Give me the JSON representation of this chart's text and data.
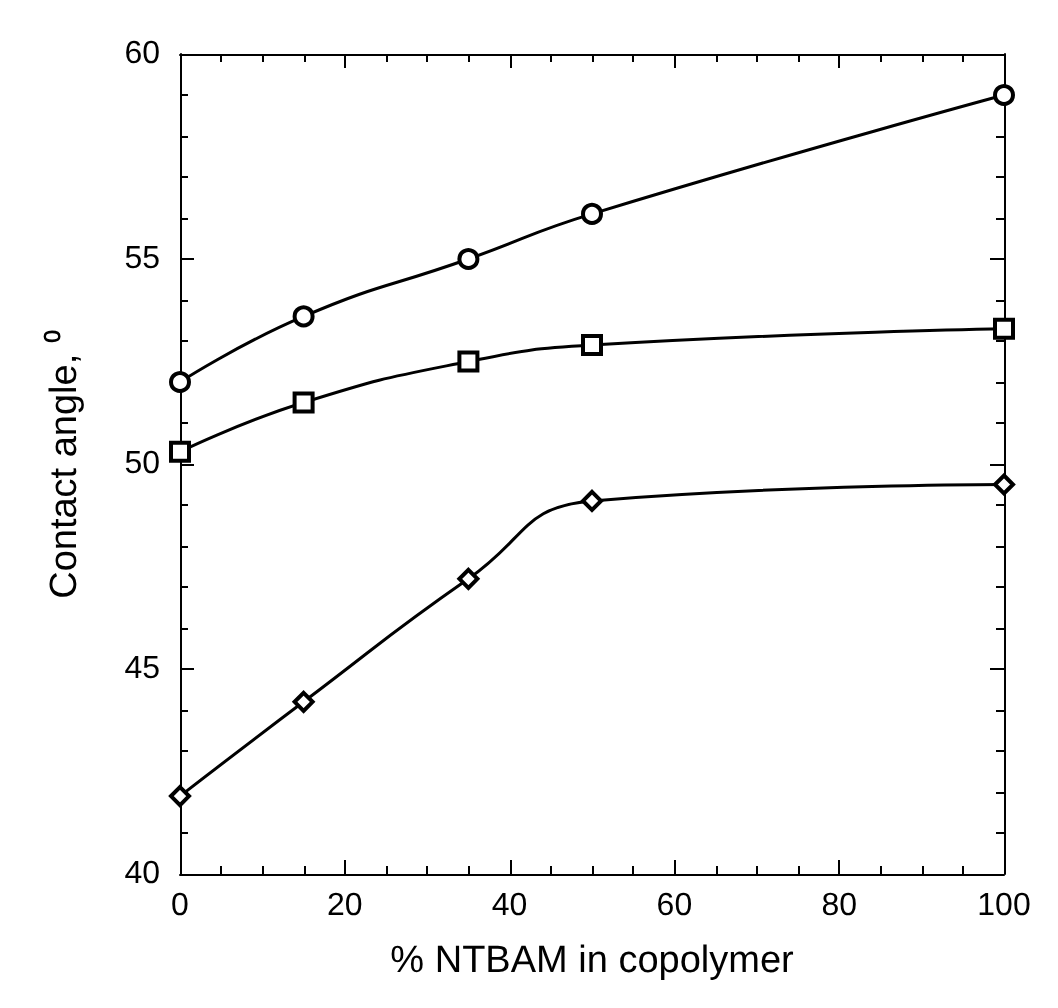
{
  "chart_data": {
    "type": "line",
    "xlabel": "% NTBAM in copolymer",
    "ylabel": "Contact angle, ⁰",
    "x": [
      0,
      15,
      35,
      50,
      100
    ],
    "series": [
      {
        "color": "#000000",
        "marker": "circle",
        "values": [
          52.0,
          53.6,
          55.0,
          56.1,
          59.0
        ]
      },
      {
        "color": "#000000",
        "marker": "square",
        "values": [
          50.3,
          51.5,
          52.5,
          52.9,
          53.3
        ]
      },
      {
        "color": "#000000",
        "marker": "diamond",
        "values": [
          41.9,
          44.2,
          47.2,
          49.1,
          49.5
        ]
      }
    ],
    "xlim": [
      0,
      100
    ],
    "xticks": [
      0,
      20,
      40,
      60,
      80,
      100
    ],
    "ylim": [
      40,
      60
    ],
    "yticks": [
      40,
      45,
      50,
      55,
      60
    ],
    "grid": false,
    "line_style": "solid"
  }
}
